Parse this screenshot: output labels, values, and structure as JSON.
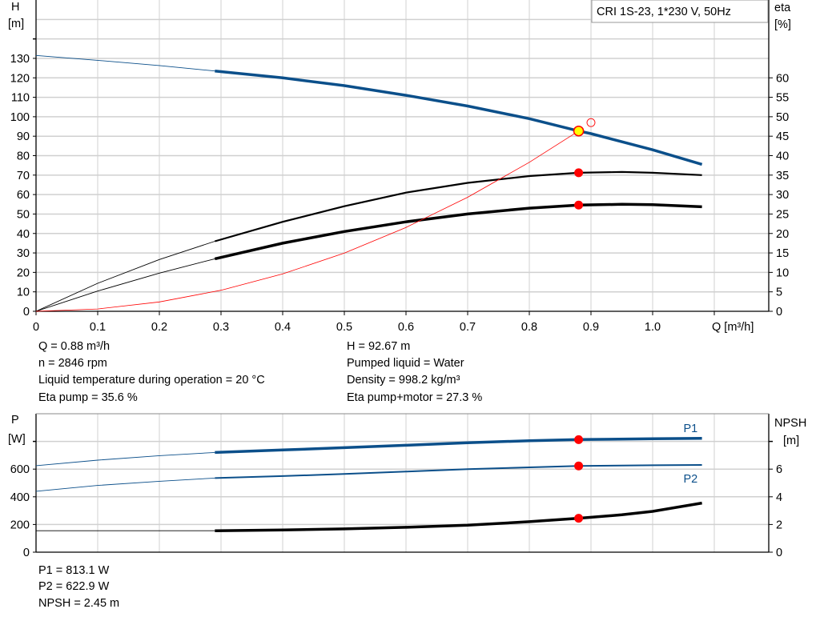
{
  "colors": {
    "head": "#0b4f8a",
    "eta": "#000000",
    "system": "#ff0000",
    "marker": "#ff0000",
    "duty": "#ffff00",
    "grid": "#d0d0d0"
  },
  "chart_data": [
    {
      "type": "line",
      "title": "CRI 1S-23, 1*230 V, 50Hz",
      "xlabel": "Q [m³/h]",
      "ylabel_left": "H\n[m]",
      "ylabel_left_lines": [
        "H",
        "[m]"
      ],
      "ylabel_right_lines": [
        "eta",
        "[%]"
      ],
      "xlim": [
        0,
        1.188
      ],
      "ylim_left": [
        0,
        160
      ],
      "ylim_right": [
        0,
        80
      ],
      "grid": true,
      "x_ticks": [
        "0",
        "0.1",
        "0.2",
        "0.3",
        "0.4",
        "0.5",
        "0.6",
        "0.7",
        "0.8",
        "0.9",
        "1.0"
      ],
      "x_tick_values": [
        0,
        0.1,
        0.2,
        0.3,
        0.4,
        0.5,
        0.6,
        0.7,
        0.8,
        0.9,
        1.0
      ],
      "y_left_ticks": [
        0,
        10,
        20,
        30,
        40,
        50,
        60,
        70,
        80,
        90,
        100,
        110,
        120,
        130
      ],
      "y_right_ticks": [
        0,
        5,
        10,
        15,
        20,
        25,
        30,
        35,
        40,
        45,
        50,
        55,
        60
      ],
      "series": [
        {
          "key": "head",
          "axis": "left",
          "thin_until": 0.29,
          "x": [
            0,
            0.1,
            0.2,
            0.29,
            0.4,
            0.5,
            0.6,
            0.7,
            0.8,
            0.88,
            0.9,
            1.0,
            1.08
          ],
          "y": [
            131.5,
            129,
            126.3,
            123.5,
            120,
            116,
            111,
            105.5,
            99,
            92.67,
            91.3,
            83,
            75.5
          ]
        },
        {
          "key": "eta-pump",
          "axis": "right",
          "thin_until": 0.29,
          "x": [
            0,
            0.1,
            0.2,
            0.29,
            0.4,
            0.5,
            0.6,
            0.7,
            0.8,
            0.88,
            0.95,
            1.0,
            1.08
          ],
          "y": [
            0,
            7.2,
            13.3,
            18,
            23,
            27,
            30.5,
            33,
            34.75,
            35.6,
            35.8,
            35.6,
            35
          ]
        },
        {
          "key": "eta-pump-motor",
          "axis": "right",
          "thin_until": 0.29,
          "x": [
            0,
            0.1,
            0.2,
            0.29,
            0.4,
            0.5,
            0.6,
            0.7,
            0.8,
            0.88,
            0.95,
            1.0,
            1.08
          ],
          "y": [
            0,
            5.2,
            9.8,
            13.5,
            17.5,
            20.5,
            23,
            25,
            26.5,
            27.3,
            27.5,
            27.4,
            26.85
          ]
        },
        {
          "key": "system-curve",
          "axis": "left",
          "thin_until": 1.2,
          "x": [
            0,
            0.1,
            0.2,
            0.3,
            0.4,
            0.5,
            0.6,
            0.7,
            0.8,
            0.88
          ],
          "y": [
            0,
            1.2,
            4.8,
            10.8,
            19.2,
            29.9,
            43.1,
            58.6,
            76.6,
            92.67
          ]
        }
      ],
      "points": [
        {
          "key": "duty-point",
          "axis": "left",
          "x": 0.88,
          "y": 92.67,
          "style": "duty"
        },
        {
          "key": "requested-point",
          "axis": "left",
          "x": 0.9,
          "y": 97,
          "style": "open"
        },
        {
          "key": "eta-pump-point",
          "axis": "right",
          "x": 0.88,
          "y": 35.6,
          "style": "filled"
        },
        {
          "key": "eta-pump-motor-point",
          "axis": "right",
          "x": 0.88,
          "y": 27.3,
          "style": "filled"
        }
      ]
    },
    {
      "type": "line",
      "ylabel_left_lines": [
        "P",
        "[W]"
      ],
      "ylabel_right_lines": [
        "NPSH",
        "[m]"
      ],
      "xlim": [
        0,
        1.188
      ],
      "ylim_left": [
        0,
        1000
      ],
      "ylim_right": [
        0,
        10
      ],
      "grid": true,
      "y_left_ticks": [
        0,
        200,
        400,
        600
      ],
      "y_right_ticks": [
        0,
        2,
        4,
        6
      ],
      "series": [
        {
          "key": "P1",
          "name": "P1",
          "axis": "left",
          "thin_until": 0.29,
          "x": [
            0,
            0.1,
            0.2,
            0.29,
            0.4,
            0.5,
            0.6,
            0.7,
            0.8,
            0.88,
            1.0,
            1.08
          ],
          "y": [
            625,
            665,
            697,
            720,
            738,
            755,
            772,
            790,
            805,
            813.1,
            819,
            822
          ]
        },
        {
          "key": "P2",
          "name": "P2",
          "axis": "left",
          "thin_until": 0.29,
          "x": [
            0,
            0.1,
            0.2,
            0.29,
            0.4,
            0.5,
            0.6,
            0.7,
            0.8,
            0.88,
            1.0,
            1.08
          ],
          "y": [
            440,
            482,
            512,
            535,
            550,
            565,
            582,
            600,
            613,
            622.9,
            628,
            630
          ]
        },
        {
          "key": "NPSH",
          "axis": "right",
          "thin_until": 0.29,
          "x": [
            0,
            0.1,
            0.2,
            0.29,
            0.4,
            0.5,
            0.6,
            0.7,
            0.8,
            0.88,
            0.95,
            1.0,
            1.08
          ],
          "y": [
            1.55,
            1.55,
            1.55,
            1.55,
            1.6,
            1.68,
            1.8,
            1.95,
            2.2,
            2.45,
            2.7,
            2.95,
            3.55
          ]
        }
      ],
      "points": [
        {
          "key": "P1-point",
          "axis": "left",
          "x": 0.88,
          "y": 813.1,
          "style": "filled"
        },
        {
          "key": "P2-point",
          "axis": "left",
          "x": 0.88,
          "y": 622.9,
          "style": "filled"
        },
        {
          "key": "NPSH-point",
          "axis": "right",
          "x": 0.88,
          "y": 2.45,
          "style": "filled"
        }
      ]
    }
  ],
  "info_top_left": [
    "Q = 0.88 m³/h",
    "n = 2846 rpm",
    "Liquid temperature during operation = 20 °C",
    "Eta pump = 35.6 %"
  ],
  "info_top_right": [
    "H = 92.67 m",
    "Pumped liquid = Water",
    "Density = 998.2 kg/m³",
    "Eta pump+motor = 27.3 %"
  ],
  "info_bottom": [
    "P1 = 813.1 W",
    "P2 = 622.9 W",
    "NPSH = 2.45 m"
  ]
}
